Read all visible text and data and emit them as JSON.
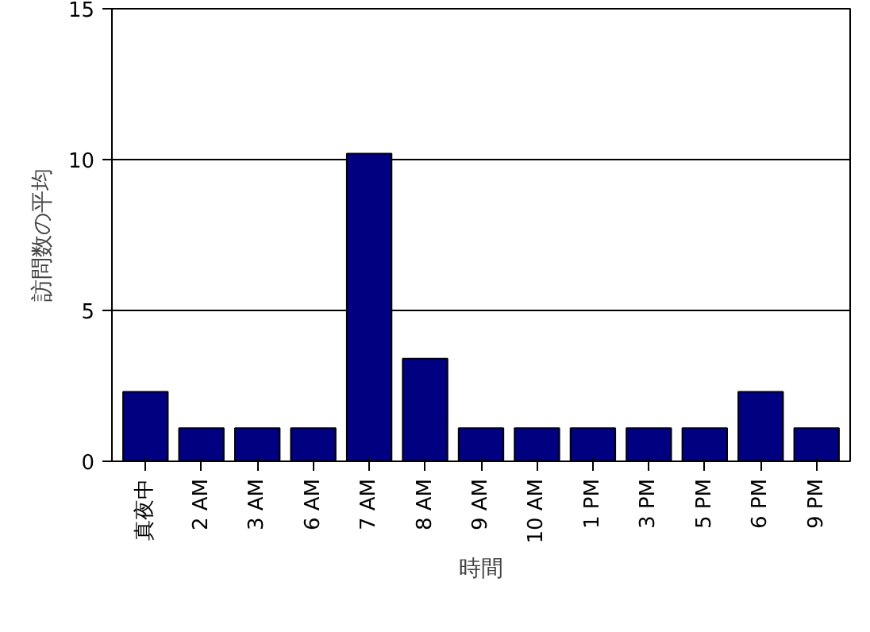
{
  "chart_data": {
    "type": "bar",
    "xlabel": "時間",
    "ylabel": "訪問数の平均",
    "categories": [
      "真夜中",
      "2 AM",
      "3 AM",
      "6 AM",
      "7 AM",
      "8 AM",
      "9 AM",
      "10 AM",
      "1 PM",
      "3 PM",
      "5 PM",
      "6 PM",
      "9 PM"
    ],
    "values": [
      2.3,
      1.1,
      1.1,
      1.1,
      10.2,
      3.4,
      1.1,
      1.1,
      1.1,
      1.1,
      1.1,
      2.3,
      1.1
    ],
    "color": "#000080",
    "ylim": [
      0,
      15
    ],
    "yticks": [
      0,
      5,
      10,
      15
    ],
    "grid": "y"
  }
}
